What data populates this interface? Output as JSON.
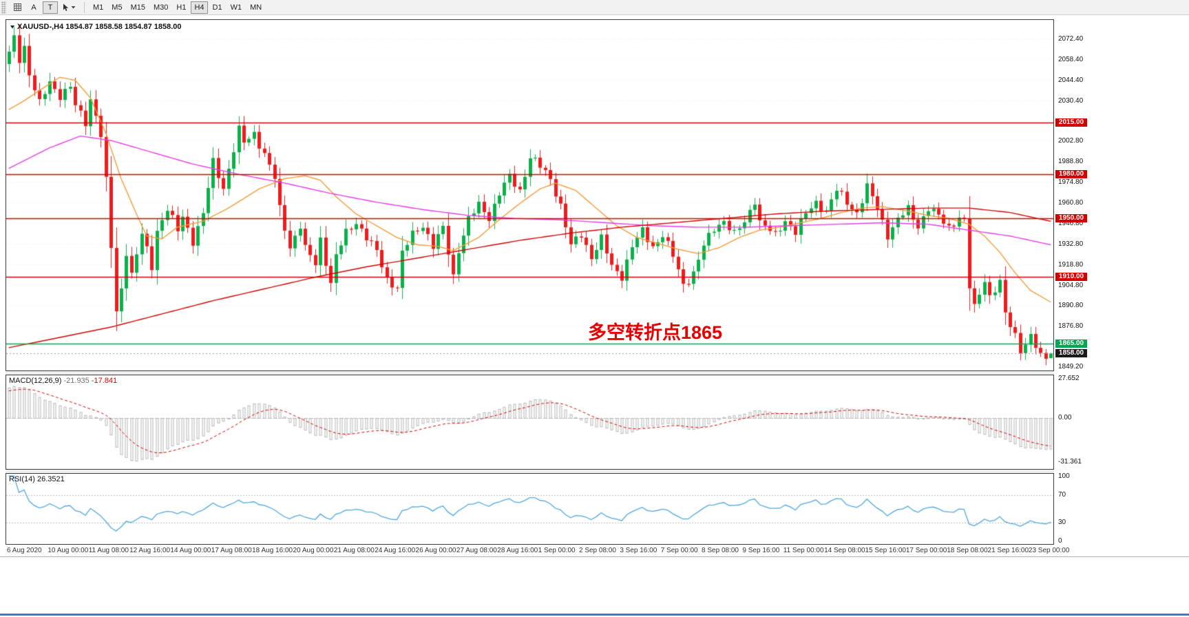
{
  "toolbar": {
    "a_label": "A",
    "t_label": "T",
    "timeframes": [
      {
        "label": "M1",
        "active": false
      },
      {
        "label": "M5",
        "active": false
      },
      {
        "label": "M15",
        "active": false
      },
      {
        "label": "M30",
        "active": false
      },
      {
        "label": "H1",
        "active": false
      },
      {
        "label": "H4",
        "active": true
      },
      {
        "label": "D1",
        "active": false
      },
      {
        "label": "W1",
        "active": false
      },
      {
        "label": "MN",
        "active": false
      }
    ]
  },
  "chart_data": {
    "type": "candlestick",
    "symbol": "XAUUSD",
    "timeframe": "H4",
    "header_line": "XAUUSD-,H4 1854.87 1858.58 1854.87 1858.00",
    "annotation": {
      "text": "多空转折点1865",
      "color": "#e60000"
    },
    "bars": 205,
    "first_open": 2055,
    "last_candle": {
      "o": 1854.87,
      "h": 1858.58,
      "l": 1854.87,
      "c": 1858.0
    },
    "candle_colors": {
      "up": "#0cb04a",
      "down": "#ee1c1c"
    },
    "price_axis": {
      "min": 1846.5,
      "max": 2085.0,
      "ticks": [
        {
          "label": "2072.40",
          "price": 2072.4
        },
        {
          "label": "2058.40",
          "price": 2058.4
        },
        {
          "label": "2044.40",
          "price": 2044.4
        },
        {
          "label": "2030.40",
          "price": 2030.4
        },
        {
          "label": "2002.80",
          "price": 2002.8
        },
        {
          "label": "1988.80",
          "price": 1988.8
        },
        {
          "label": "1974.80",
          "price": 1974.8
        },
        {
          "label": "1960.80",
          "price": 1960.8
        },
        {
          "label": "1946.80",
          "price": 1946.8
        },
        {
          "label": "1932.80",
          "price": 1932.8
        },
        {
          "label": "1918.80",
          "price": 1918.8
        },
        {
          "label": "1904.80",
          "price": 1904.8
        },
        {
          "label": "1890.80",
          "price": 1890.8
        },
        {
          "label": "1876.80",
          "price": 1876.8
        },
        {
          "label": "1849.20",
          "price": 1849.2
        }
      ]
    },
    "hlines": [
      {
        "price": 2015.0,
        "label": "2015.00",
        "color": "#d40000"
      },
      {
        "price": 1980.0,
        "label": "1980.00",
        "color": "#d40000"
      },
      {
        "price": 1950.0,
        "label": "1950.00",
        "color": "#d40000"
      },
      {
        "price": 1910.0,
        "label": "1910.00",
        "color": "#d40000"
      },
      {
        "price": 1865.0,
        "label": "1865.00",
        "color": "#00a94f"
      }
    ],
    "current_price": {
      "price": 1858.0,
      "label": "1858.00",
      "box_color": "#1a1a1a"
    },
    "prehistory_bars": 40,
    "prehistory": [
      [
        0,
        1938
      ],
      [
        30,
        2020
      ],
      [
        39,
        2058
      ]
    ],
    "price_path": [
      [
        0,
        2062
      ],
      [
        1,
        2072
      ],
      [
        2,
        2058
      ],
      [
        3,
        2067
      ],
      [
        4,
        2049
      ],
      [
        6,
        2028
      ],
      [
        8,
        2042
      ],
      [
        10,
        2034
      ],
      [
        12,
        2040
      ],
      [
        13,
        2026
      ],
      [
        15,
        2015
      ],
      [
        16,
        2031
      ],
      [
        17,
        2021
      ],
      [
        18,
        2007
      ],
      [
        19,
        1975
      ],
      [
        20,
        1930
      ],
      [
        21,
        1886
      ],
      [
        22,
        1902
      ],
      [
        23,
        1928
      ],
      [
        24,
        1912
      ],
      [
        26,
        1939
      ],
      [
        28,
        1917
      ],
      [
        29,
        1942
      ],
      [
        31,
        1957
      ],
      [
        33,
        1941
      ],
      [
        34,
        1951
      ],
      [
        36,
        1935
      ],
      [
        38,
        1953
      ],
      [
        40,
        1988
      ],
      [
        42,
        1971
      ],
      [
        43,
        1984
      ],
      [
        45,
        2010
      ],
      [
        46,
        2001
      ],
      [
        48,
        2008
      ],
      [
        50,
        1994
      ],
      [
        52,
        1977
      ],
      [
        53,
        1956
      ],
      [
        55,
        1931
      ],
      [
        57,
        1945
      ],
      [
        58,
        1929
      ],
      [
        60,
        1919
      ],
      [
        61,
        1936
      ],
      [
        63,
        1906
      ],
      [
        64,
        1924
      ],
      [
        66,
        1940
      ],
      [
        68,
        1948
      ],
      [
        70,
        1937
      ],
      [
        72,
        1927
      ],
      [
        74,
        1909
      ],
      [
        76,
        1903
      ],
      [
        77,
        1926
      ],
      [
        79,
        1939
      ],
      [
        81,
        1946
      ],
      [
        83,
        1931
      ],
      [
        85,
        1943
      ],
      [
        87,
        1911
      ],
      [
        88,
        1929
      ],
      [
        90,
        1949
      ],
      [
        92,
        1959
      ],
      [
        94,
        1951
      ],
      [
        96,
        1967
      ],
      [
        98,
        1978
      ],
      [
        100,
        1969
      ],
      [
        102,
        1992
      ],
      [
        104,
        1985
      ],
      [
        106,
        1977
      ],
      [
        108,
        1959
      ],
      [
        110,
        1931
      ],
      [
        112,
        1939
      ],
      [
        114,
        1924
      ],
      [
        116,
        1936
      ],
      [
        118,
        1917
      ],
      [
        120,
        1911
      ],
      [
        122,
        1931
      ],
      [
        124,
        1941
      ],
      [
        126,
        1931
      ],
      [
        128,
        1939
      ],
      [
        130,
        1924
      ],
      [
        132,
        1905
      ],
      [
        134,
        1913
      ],
      [
        136,
        1931
      ],
      [
        138,
        1943
      ],
      [
        140,
        1949
      ],
      [
        142,
        1939
      ],
      [
        144,
        1947
      ],
      [
        146,
        1963
      ],
      [
        147,
        1948
      ],
      [
        150,
        1938
      ],
      [
        152,
        1949
      ],
      [
        154,
        1941
      ],
      [
        156,
        1953
      ],
      [
        158,
        1961
      ],
      [
        160,
        1955
      ],
      [
        162,
        1969
      ],
      [
        164,
        1961
      ],
      [
        166,
        1954
      ],
      [
        168,
        1971
      ],
      [
        170,
        1957
      ],
      [
        172,
        1939
      ],
      [
        174,
        1949
      ],
      [
        176,
        1956
      ],
      [
        178,
        1945
      ],
      [
        180,
        1957
      ],
      [
        182,
        1951
      ],
      [
        184,
        1944
      ],
      [
        186,
        1951
      ],
      [
        187,
        1948
      ],
      [
        188,
        1903
      ],
      [
        189,
        1889
      ],
      [
        191,
        1909
      ],
      [
        192,
        1897
      ],
      [
        194,
        1906
      ],
      [
        195,
        1884
      ],
      [
        197,
        1871
      ],
      [
        198,
        1861
      ],
      [
        200,
        1869
      ],
      [
        202,
        1856
      ],
      [
        203,
        1855
      ],
      [
        204,
        1858
      ]
    ],
    "moving_averages": [
      {
        "name": "ma-fast",
        "color": "#f29b38",
        "points": [
          [
            0,
            2024
          ],
          [
            3,
            2030
          ],
          [
            6,
            2037
          ],
          [
            10,
            2046
          ],
          [
            13,
            2044
          ],
          [
            16,
            2032
          ],
          [
            19,
            2008
          ],
          [
            22,
            1977
          ],
          [
            25,
            1953
          ],
          [
            27,
            1938
          ],
          [
            30,
            1936
          ],
          [
            33,
            1944
          ],
          [
            38,
            1948
          ],
          [
            43,
            1957
          ],
          [
            49,
            1970
          ],
          [
            54,
            1977
          ],
          [
            58,
            1979
          ],
          [
            61,
            1976
          ],
          [
            64,
            1965
          ],
          [
            68,
            1953
          ],
          [
            72,
            1945
          ],
          [
            76,
            1937
          ],
          [
            80,
            1932
          ],
          [
            84,
            1931
          ],
          [
            87,
            1928
          ],
          [
            92,
            1937
          ],
          [
            96,
            1949
          ],
          [
            100,
            1960
          ],
          [
            104,
            1970
          ],
          [
            107,
            1974
          ],
          [
            111,
            1969
          ],
          [
            115,
            1957
          ],
          [
            119,
            1945
          ],
          [
            123,
            1937
          ],
          [
            127,
            1933
          ],
          [
            131,
            1929
          ],
          [
            135,
            1926
          ],
          [
            139,
            1930
          ],
          [
            143,
            1937
          ],
          [
            147,
            1942
          ],
          [
            151,
            1944
          ],
          [
            155,
            1947
          ],
          [
            159,
            1950
          ],
          [
            163,
            1954
          ],
          [
            167,
            1957
          ],
          [
            171,
            1958
          ],
          [
            176,
            1955
          ],
          [
            180,
            1952
          ],
          [
            184,
            1950
          ],
          [
            188,
            1946
          ],
          [
            191,
            1938
          ],
          [
            194,
            1927
          ],
          [
            197,
            1913
          ],
          [
            200,
            1901
          ],
          [
            204,
            1893
          ]
        ]
      },
      {
        "name": "ma-mid",
        "color": "#e83ae8",
        "points": [
          [
            0,
            1984
          ],
          [
            8,
            1998
          ],
          [
            14,
            2006
          ],
          [
            20,
            2003
          ],
          [
            28,
            1995
          ],
          [
            36,
            1987
          ],
          [
            45,
            1980
          ],
          [
            54,
            1974
          ],
          [
            63,
            1967
          ],
          [
            72,
            1961
          ],
          [
            81,
            1956
          ],
          [
            90,
            1952
          ],
          [
            99,
            1950
          ],
          [
            108,
            1949
          ],
          [
            117,
            1947
          ],
          [
            126,
            1945
          ],
          [
            135,
            1944
          ],
          [
            144,
            1944
          ],
          [
            153,
            1945
          ],
          [
            162,
            1946
          ],
          [
            171,
            1947
          ],
          [
            180,
            1946
          ],
          [
            188,
            1942
          ],
          [
            196,
            1938
          ],
          [
            204,
            1932
          ]
        ]
      },
      {
        "name": "ma-slow",
        "color": "#d40000",
        "points": [
          [
            0,
            1862
          ],
          [
            10,
            1869
          ],
          [
            20,
            1876
          ],
          [
            30,
            1885
          ],
          [
            40,
            1894
          ],
          [
            50,
            1902
          ],
          [
            60,
            1910
          ],
          [
            70,
            1917
          ],
          [
            80,
            1923
          ],
          [
            90,
            1929
          ],
          [
            100,
            1935
          ],
          [
            110,
            1940
          ],
          [
            120,
            1944
          ],
          [
            130,
            1947
          ],
          [
            140,
            1950
          ],
          [
            150,
            1953
          ],
          [
            160,
            1955
          ],
          [
            170,
            1956
          ],
          [
            180,
            1957
          ],
          [
            188,
            1957
          ],
          [
            196,
            1954
          ],
          [
            204,
            1948
          ]
        ]
      }
    ],
    "time_labels": [
      "6 Aug 2020",
      "10 Aug 00:00",
      "11 Aug 08:00",
      "12 Aug 16:00",
      "14 Aug 00:00",
      "17 Aug 08:00",
      "18 Aug 16:00",
      "20 Aug 00:00",
      "21 Aug 08:00",
      "24 Aug 16:00",
      "26 Aug 00:00",
      "27 Aug 08:00",
      "28 Aug 16:00",
      "1 Sep 00:00",
      "2 Sep 08:00",
      "3 Sep 16:00",
      "7 Sep 00:00",
      "8 Sep 08:00",
      "9 Sep 16:00",
      "11 Sep 00:00",
      "14 Sep 08:00",
      "15 Sep 16:00",
      "17 Sep 00:00",
      "18 Sep 08:00",
      "21 Sep 16:00",
      "23 Sep 00:00"
    ],
    "macd": {
      "label": "MACD(12,26,9)",
      "value_main": "-21.935",
      "value_signal": "-17.841",
      "fast": 12,
      "slow": 26,
      "signal": 9,
      "range": [
        -36,
        30
      ],
      "hist_color": "#b4b4b4",
      "signal_color": "#d40000",
      "scale_labels": [
        {
          "label": "27.652",
          "value": 27.652
        },
        {
          "label": "0.00",
          "value": 0
        },
        {
          "label": "-31.361",
          "value": -31.361
        }
      ]
    },
    "rsi": {
      "label": "RSI(14)",
      "value": "26.3521",
      "period": 14,
      "line_color": "#4da6e0",
      "levels": [
        70,
        30
      ],
      "scale_labels": [
        {
          "label": "100",
          "value": 100
        },
        {
          "label": "70",
          "value": 70
        },
        {
          "label": "30",
          "value": 30
        },
        {
          "label": "0",
          "value": 0
        }
      ]
    }
  }
}
